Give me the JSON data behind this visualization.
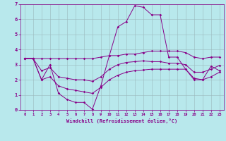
{
  "xlabel": "Windchill (Refroidissement éolien,°C)",
  "background_color": "#b8e8ec",
  "grid_color": "#9ab8bc",
  "line_color": "#880088",
  "hours": [
    0,
    1,
    2,
    3,
    4,
    5,
    6,
    7,
    8,
    9,
    10,
    11,
    12,
    13,
    14,
    15,
    16,
    17,
    18,
    19,
    20,
    21,
    22,
    23
  ],
  "temp_series": [
    3.4,
    3.4,
    2.0,
    3.0,
    1.1,
    0.7,
    0.5,
    0.5,
    0.05,
    1.6,
    3.6,
    5.5,
    5.85,
    6.9,
    6.8,
    6.3,
    6.3,
    3.5,
    3.5,
    2.7,
    2.0,
    2.0,
    2.9,
    2.6
  ],
  "max_series": [
    3.4,
    3.4,
    3.4,
    3.4,
    3.4,
    3.4,
    3.4,
    3.4,
    3.4,
    3.5,
    3.6,
    3.6,
    3.7,
    3.7,
    3.8,
    3.9,
    3.9,
    3.9,
    3.9,
    3.8,
    3.5,
    3.4,
    3.5,
    3.5
  ],
  "avg_series": [
    3.4,
    3.4,
    2.6,
    2.8,
    2.2,
    2.1,
    2.0,
    2.0,
    1.9,
    2.2,
    2.7,
    3.0,
    3.15,
    3.2,
    3.25,
    3.2,
    3.2,
    3.1,
    3.1,
    3.0,
    2.5,
    2.5,
    2.7,
    2.95
  ],
  "min_series": [
    3.4,
    3.4,
    2.0,
    2.2,
    1.6,
    1.4,
    1.3,
    1.2,
    1.1,
    1.5,
    2.0,
    2.3,
    2.5,
    2.6,
    2.65,
    2.7,
    2.7,
    2.7,
    2.7,
    2.7,
    2.1,
    2.0,
    2.2,
    2.5
  ],
  "ylim": [
    0,
    7
  ],
  "xlim": [
    -0.5,
    23.5
  ],
  "figsize": [
    3.2,
    2.0
  ],
  "dpi": 100
}
